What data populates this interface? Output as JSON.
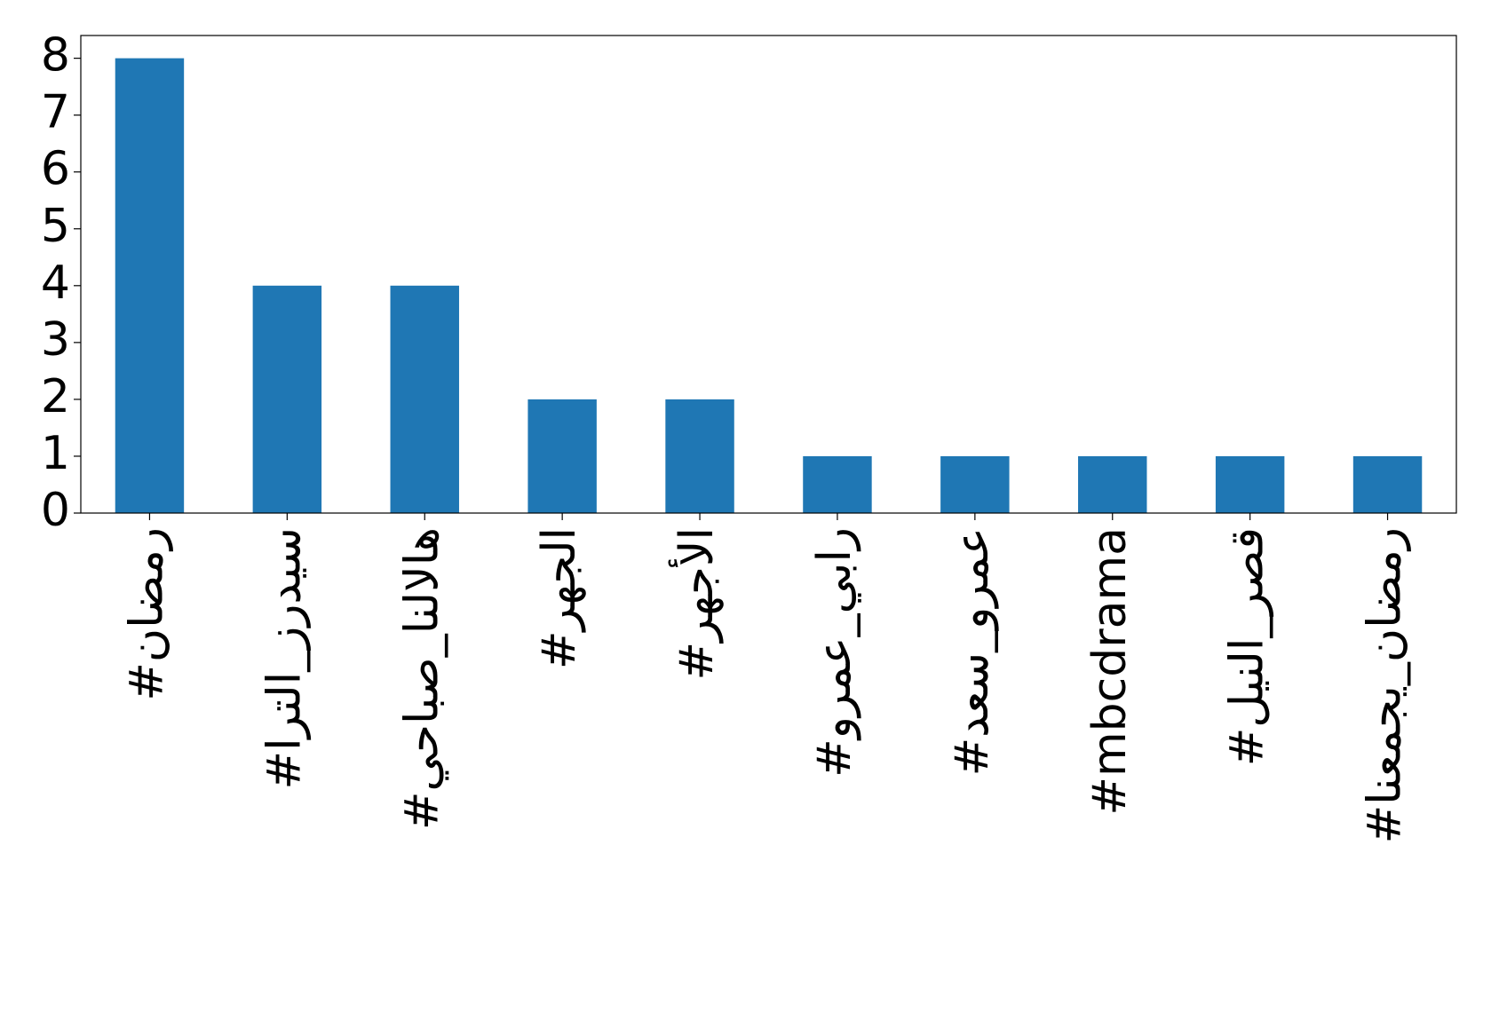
{
  "chart_data": {
    "type": "bar",
    "categories": [
      "#رمضان",
      "#سيدرز_الترا",
      "#هالالنا_صباحي",
      "#الجهر",
      "#الأجهر",
      "#رابي_عمرو",
      "#عمرو_سعد",
      "#mbcdrama",
      "#قصر_النيل",
      "#رمضان_يجمعنا"
    ],
    "values": [
      8,
      4,
      4,
      2,
      2,
      1,
      1,
      1,
      1,
      1
    ],
    "color": "#1f77b4",
    "ylim": [
      0,
      8.4
    ],
    "yticks": [
      0,
      1,
      2,
      3,
      4,
      5,
      6,
      7,
      8
    ],
    "grid": false
  }
}
